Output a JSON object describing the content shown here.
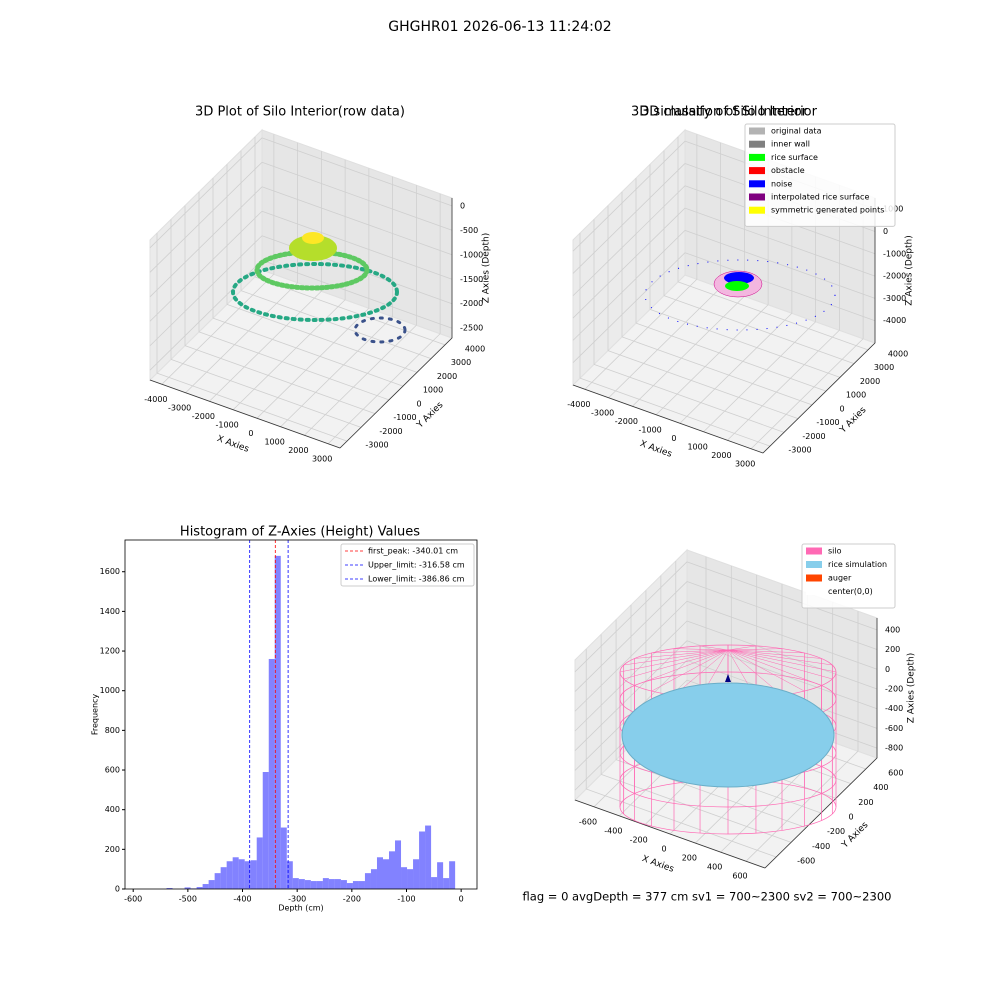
{
  "title": "GHGHR01 2026-06-13 11:24:02",
  "status": "flag = 0     avgDepth = 377 cm  sv1 = 700~2300  sv2 = 700~2300",
  "chart_data": [
    {
      "type": "scatter3d",
      "title": "3D Plot of Silo Interior(row data)",
      "xlabel": "X Axies",
      "ylabel": "Y Axies",
      "zlabel": "Z Axies (Depth)",
      "xlim": [
        -4500,
        3500
      ],
      "ylim": [
        -3500,
        4500
      ],
      "zlim": [
        -2700,
        160
      ],
      "xticks": [
        -4000,
        -3000,
        -2000,
        -1000,
        0,
        1000,
        2000,
        3000
      ],
      "yticks": [
        -3000,
        -2000,
        -1000,
        0,
        1000,
        2000,
        3000,
        4000
      ],
      "zticks": [
        -2500,
        -2000,
        -1500,
        -1000,
        -500,
        0
      ]
    },
    {
      "type": "scatter3d",
      "title": "3D classify of Silo Interior",
      "xlabel": "X Axies",
      "ylabel": "Y Axies",
      "zlabel": "Z Axies (Depth)",
      "xlim": [
        -4500,
        3500
      ],
      "ylim": [
        -3500,
        4500
      ],
      "zlim": [
        -5000,
        1500
      ],
      "xticks": [
        -4000,
        -3000,
        -2000,
        -1000,
        0,
        1000,
        2000,
        3000
      ],
      "yticks": [
        -3000,
        -2000,
        -1000,
        0,
        1000,
        2000,
        3000,
        4000
      ],
      "zticks": [
        -4000,
        -3000,
        -2000,
        -1000,
        0,
        1000
      ],
      "legend": [
        {
          "name": "original data",
          "color": "#b3b3b3"
        },
        {
          "name": "inner wall",
          "color": "#808080"
        },
        {
          "name": "rice surface",
          "color": "#00ff00"
        },
        {
          "name": "obstacle",
          "color": "#ff0000"
        },
        {
          "name": "noise",
          "color": "#0000ff"
        },
        {
          "name": "interpolated rice surface",
          "color": "#800080"
        },
        {
          "name": "symmetric generated points",
          "color": "#ffff00"
        }
      ]
    },
    {
      "type": "histogram",
      "title": "Histogram of Z-Axies (Height) Values",
      "xlabel": "Depth (cm)",
      "ylabel": "Frequency",
      "color": "#4d4dff",
      "xlim": [
        -615,
        29
      ],
      "ylim": [
        0,
        1760
      ],
      "xticks": [
        -600,
        -500,
        -400,
        -300,
        -200,
        -100,
        0
      ],
      "yticks": [
        0,
        200,
        400,
        600,
        800,
        1000,
        1200,
        1400,
        1600
      ],
      "bins": [
        -616,
        -605,
        -594,
        -583,
        -572,
        -561,
        -550,
        -539,
        -528,
        -517,
        -506,
        -495,
        -484,
        -473,
        -462,
        -451,
        -440,
        -429,
        -418,
        -407,
        -396,
        -385,
        -374,
        -363,
        -352,
        -341,
        -330,
        -319,
        -308,
        -297,
        -286,
        -275,
        -264,
        -253,
        -242,
        -231,
        -220,
        -209,
        -198,
        -187,
        -176,
        -165,
        -154,
        -143,
        -132,
        -121,
        -110,
        -99,
        -88,
        -77,
        -66,
        -55,
        -44,
        -33,
        -22,
        -11,
        0
      ],
      "values": [
        0,
        0,
        0,
        0,
        0,
        0,
        0,
        5,
        0,
        0,
        8,
        3,
        10,
        25,
        45,
        80,
        110,
        140,
        160,
        150,
        140,
        145,
        260,
        590,
        1160,
        1680,
        310,
        140,
        55,
        50,
        45,
        40,
        40,
        55,
        50,
        50,
        45,
        30,
        40,
        40,
        80,
        100,
        160,
        150,
        190,
        245,
        110,
        100,
        150,
        290,
        320,
        60,
        135,
        55,
        140,
        0
      ],
      "lines": [
        {
          "label": "first_peak: -340.01 cm",
          "value": -340.01,
          "color": "#ff0000"
        },
        {
          "label": "Upper_limit: -316.58 cm",
          "value": -316.58,
          "color": "#0000ff"
        },
        {
          "label": "Lower_limit: -386.86 cm",
          "value": -386.86,
          "color": "#0000ff"
        }
      ]
    },
    {
      "type": "surface3d",
      "title": "3D simulation of Silo Interior",
      "xlabel": "X Axies",
      "ylabel": "Y Axies",
      "zlabel": "Z Axies (Depth)",
      "xlim": [
        -750,
        750
      ],
      "ylim": [
        -750,
        750
      ],
      "zlim": [
        -900,
        520
      ],
      "xticks": [
        -600,
        -400,
        -200,
        0,
        200,
        400,
        600
      ],
      "yticks": [
        -600,
        -400,
        -200,
        0,
        200,
        400,
        600
      ],
      "zticks": [
        -800,
        -600,
        -400,
        -200,
        0,
        200,
        400
      ],
      "legend": [
        {
          "name": "silo",
          "color": "#ff69b4"
        },
        {
          "name": "rice simulation",
          "color": "#87ceeb"
        },
        {
          "name": "auger",
          "color": "#ff4500"
        },
        {
          "name": "center(0,0)",
          "color": "#ffffff"
        }
      ]
    }
  ]
}
